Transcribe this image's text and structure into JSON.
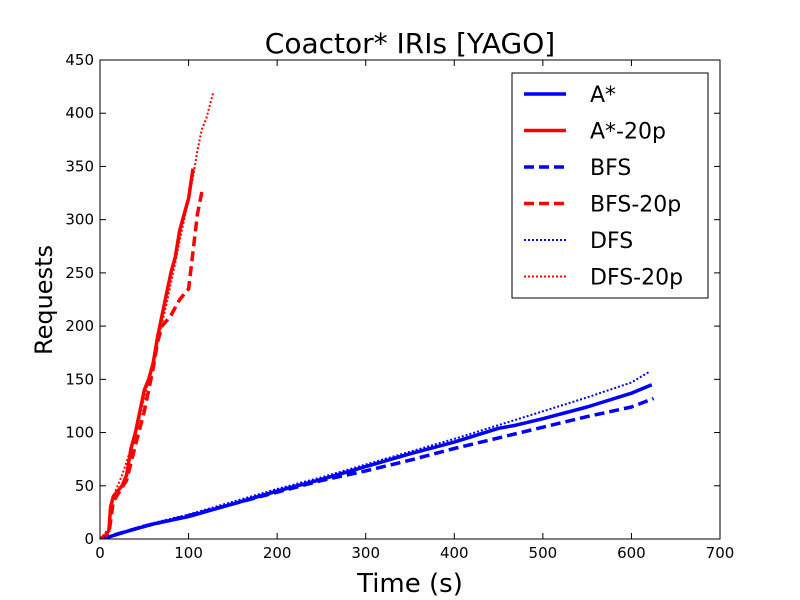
{
  "chart_data": {
    "type": "line",
    "title": "Coactor* IRIs [YAGO]",
    "xlabel": "Time (s)",
    "ylabel": "Requests",
    "xlim": [
      0,
      700
    ],
    "ylim": [
      0,
      450
    ],
    "xticks": [
      "0",
      "100",
      "200",
      "300",
      "400",
      "500",
      "600",
      "700"
    ],
    "yticks": [
      "0",
      "50",
      "100",
      "150",
      "200",
      "250",
      "300",
      "350",
      "400",
      "450"
    ],
    "grid": false,
    "legend_position": "top-right",
    "series": [
      {
        "name": "A*",
        "color": "#0000ff",
        "style": "solid",
        "points": [
          [
            0,
            0
          ],
          [
            10,
            2
          ],
          [
            30,
            7
          ],
          [
            60,
            14
          ],
          [
            100,
            21
          ],
          [
            150,
            33
          ],
          [
            200,
            45
          ],
          [
            250,
            56
          ],
          [
            300,
            68
          ],
          [
            350,
            80
          ],
          [
            400,
            91
          ],
          [
            450,
            104
          ],
          [
            470,
            107
          ],
          [
            500,
            113
          ],
          [
            550,
            124
          ],
          [
            600,
            137
          ],
          [
            623,
            145
          ]
        ]
      },
      {
        "name": "A*-20p",
        "color": "#ff0000",
        "style": "solid",
        "points": [
          [
            0,
            0
          ],
          [
            5,
            2
          ],
          [
            10,
            8
          ],
          [
            12,
            30
          ],
          [
            15,
            40
          ],
          [
            20,
            45
          ],
          [
            25,
            50
          ],
          [
            30,
            60
          ],
          [
            35,
            85
          ],
          [
            40,
            100
          ],
          [
            45,
            120
          ],
          [
            50,
            140
          ],
          [
            55,
            150
          ],
          [
            60,
            165
          ],
          [
            65,
            190
          ],
          [
            70,
            210
          ],
          [
            75,
            230
          ],
          [
            80,
            250
          ],
          [
            85,
            265
          ],
          [
            90,
            290
          ],
          [
            95,
            305
          ],
          [
            100,
            320
          ],
          [
            105,
            348
          ]
        ]
      },
      {
        "name": "BFS",
        "color": "#0000ff",
        "style": "dashed",
        "points": [
          [
            0,
            0
          ],
          [
            50,
            12
          ],
          [
            100,
            22
          ],
          [
            150,
            33
          ],
          [
            200,
            44
          ],
          [
            250,
            55
          ],
          [
            300,
            64
          ],
          [
            350,
            74
          ],
          [
            400,
            85
          ],
          [
            450,
            95
          ],
          [
            500,
            105
          ],
          [
            550,
            115
          ],
          [
            600,
            124
          ],
          [
            625,
            132
          ]
        ]
      },
      {
        "name": "BFS-20p",
        "color": "#ff0000",
        "style": "dashed",
        "points": [
          [
            0,
            0
          ],
          [
            10,
            5
          ],
          [
            15,
            35
          ],
          [
            20,
            42
          ],
          [
            30,
            55
          ],
          [
            40,
            88
          ],
          [
            50,
            120
          ],
          [
            60,
            160
          ],
          [
            65,
            185
          ],
          [
            70,
            200
          ],
          [
            80,
            210
          ],
          [
            90,
            225
          ],
          [
            100,
            235
          ],
          [
            105,
            270
          ],
          [
            110,
            305
          ],
          [
            116,
            330
          ]
        ]
      },
      {
        "name": "DFS",
        "color": "#0000ff",
        "style": "dotted",
        "points": [
          [
            0,
            0
          ],
          [
            50,
            13
          ],
          [
            100,
            23
          ],
          [
            150,
            35
          ],
          [
            200,
            47
          ],
          [
            250,
            58
          ],
          [
            300,
            70
          ],
          [
            350,
            82
          ],
          [
            400,
            94
          ],
          [
            450,
            107
          ],
          [
            500,
            120
          ],
          [
            550,
            133
          ],
          [
            600,
            147
          ],
          [
            620,
            157
          ]
        ]
      },
      {
        "name": "DFS-20p",
        "color": "#ff0000",
        "style": "dotted",
        "points": [
          [
            0,
            0
          ],
          [
            10,
            10
          ],
          [
            15,
            40
          ],
          [
            25,
            60
          ],
          [
            35,
            85
          ],
          [
            45,
            115
          ],
          [
            55,
            150
          ],
          [
            65,
            185
          ],
          [
            75,
            220
          ],
          [
            85,
            260
          ],
          [
            95,
            300
          ],
          [
            105,
            340
          ],
          [
            110,
            365
          ],
          [
            115,
            385
          ],
          [
            120,
            395
          ],
          [
            128,
            420
          ]
        ]
      }
    ]
  }
}
